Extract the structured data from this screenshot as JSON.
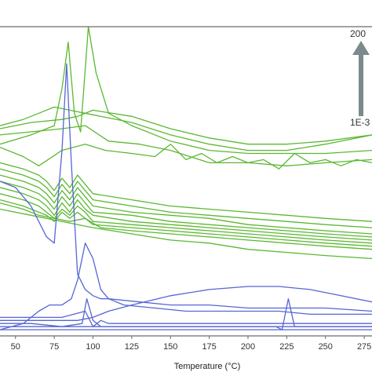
{
  "chart_data": {
    "type": "line",
    "xlabel": "Temperature (°C)",
    "xlim": [
      40,
      280
    ],
    "ylim": [
      0,
      100
    ],
    "grid": false,
    "x_ticks": [
      "50",
      "75",
      "100",
      "125",
      "150",
      "175",
      "200",
      "225",
      "250",
      "275"
    ],
    "annotation": {
      "top": "200",
      "bottom": "1E-3",
      "arrow": "up"
    },
    "colors": {
      "green": "#5bb832",
      "blue": "#5566d4",
      "frame": "#6a6a6a",
      "arrow": "#7b8a8b"
    },
    "series": [
      {
        "group": "green",
        "x": [
          40,
          55,
          65,
          75,
          85,
          95,
          105,
          125,
          150,
          175,
          200,
          225,
          250,
          280
        ],
        "y": [
          68,
          70,
          72,
          74,
          73,
          72,
          71,
          69,
          65,
          62,
          60,
          60,
          62,
          65
        ]
      },
      {
        "group": "green",
        "x": [
          40,
          60,
          80,
          90,
          100,
          125,
          150,
          175,
          200,
          225,
          250,
          280
        ],
        "y": [
          67,
          69,
          70,
          71,
          73,
          71,
          67,
          64,
          62,
          62,
          63,
          65
        ]
      },
      {
        "group": "green",
        "x": [
          40,
          60,
          75,
          80,
          84,
          88,
          92,
          97,
          102,
          110,
          125,
          150,
          175,
          200,
          225,
          250,
          280
        ],
        "y": [
          62,
          65,
          68,
          80,
          95,
          72,
          66,
          100,
          85,
          72,
          68,
          63,
          60,
          59,
          59,
          59,
          60
        ]
      },
      {
        "group": "green",
        "x": [
          40,
          60,
          80,
          95,
          110,
          130,
          150,
          175,
          200,
          225,
          250,
          280
        ],
        "y": [
          65,
          66,
          67,
          68,
          63,
          62,
          60,
          56,
          56,
          55,
          56,
          57
        ]
      },
      {
        "group": "green",
        "x": [
          40,
          55,
          65,
          80,
          95,
          108,
          125,
          140,
          150,
          160,
          170,
          180,
          190,
          200,
          210,
          220,
          230,
          240,
          250,
          260,
          270,
          280
        ],
        "y": [
          61,
          58,
          55,
          60,
          62,
          60,
          59,
          58,
          62,
          57,
          59,
          56,
          58,
          56,
          57,
          54,
          59,
          56,
          57,
          55,
          57,
          56
        ]
      },
      {
        "group": "green",
        "x": [
          40,
          55,
          65,
          70,
          75,
          80,
          85,
          90,
          95,
          100,
          125,
          150,
          175,
          200,
          225,
          250,
          280
        ],
        "y": [
          56,
          54,
          52,
          50,
          47,
          51,
          48,
          52,
          49,
          46,
          44,
          42,
          41,
          40,
          39,
          38,
          37
        ]
      },
      {
        "group": "green",
        "x": [
          40,
          55,
          65,
          70,
          75,
          80,
          85,
          90,
          95,
          100,
          125,
          150,
          175,
          200,
          225,
          250,
          280
        ],
        "y": [
          54,
          52,
          50,
          48,
          45,
          49,
          46,
          50,
          47,
          44,
          42,
          40,
          39,
          38,
          37,
          36,
          35
        ]
      },
      {
        "group": "green",
        "x": [
          40,
          55,
          65,
          70,
          75,
          80,
          85,
          90,
          95,
          100,
          125,
          150,
          175,
          200,
          225,
          250,
          280
        ],
        "y": [
          52,
          50,
          48,
          46,
          43,
          47,
          44,
          48,
          45,
          42,
          40,
          39,
          38,
          36,
          35,
          34,
          33
        ]
      },
      {
        "group": "green",
        "x": [
          40,
          55,
          65,
          70,
          75,
          80,
          85,
          90,
          95,
          100,
          125,
          150,
          175,
          200,
          225,
          250,
          280
        ],
        "y": [
          50,
          48,
          46,
          44,
          41,
          45,
          42,
          46,
          43,
          40,
          39,
          37,
          36,
          35,
          34,
          33,
          32
        ]
      },
      {
        "group": "green",
        "x": [
          40,
          55,
          65,
          70,
          75,
          80,
          85,
          90,
          95,
          100,
          125,
          150,
          175,
          200,
          225,
          250,
          280
        ],
        "y": [
          48,
          46,
          44,
          42,
          39,
          43,
          40,
          44,
          41,
          39,
          37,
          36,
          35,
          34,
          33,
          32,
          31
        ]
      },
      {
        "group": "green",
        "x": [
          40,
          55,
          65,
          70,
          75,
          80,
          85,
          90,
          95,
          100,
          125,
          150,
          175,
          200,
          225,
          250,
          280
        ],
        "y": [
          46,
          44,
          42,
          40,
          38,
          41,
          39,
          42,
          40,
          37,
          36,
          35,
          34,
          33,
          32,
          31,
          30
        ]
      },
      {
        "group": "green",
        "x": [
          40,
          55,
          65,
          70,
          75,
          80,
          85,
          90,
          95,
          100,
          125,
          150,
          175,
          200,
          225,
          250,
          280
        ],
        "y": [
          44,
          42,
          40,
          39,
          37,
          40,
          38,
          40,
          38,
          36,
          35,
          34,
          33,
          32,
          31,
          30,
          29
        ]
      },
      {
        "group": "green",
        "x": [
          40,
          55,
          65,
          75,
          85,
          95,
          105,
          125,
          150,
          175,
          200,
          225,
          250,
          280
        ],
        "y": [
          43,
          41,
          39,
          38,
          37,
          38,
          35,
          34,
          33,
          32,
          31,
          30,
          29,
          28
        ]
      },
      {
        "group": "green",
        "x": [
          40,
          60,
          80,
          100,
          125,
          150,
          175,
          200,
          225,
          250,
          280
        ],
        "y": [
          41,
          39,
          37,
          35,
          33,
          31,
          30,
          28,
          27,
          26,
          25
        ]
      },
      {
        "group": "blue",
        "x": [
          40,
          50,
          60,
          70,
          75,
          80,
          83,
          86,
          90,
          95,
          100,
          105,
          110,
          130,
          150,
          175,
          200,
          225,
          250,
          280
        ],
        "y": [
          50,
          48,
          42,
          32,
          30,
          60,
          88,
          56,
          20,
          15,
          13,
          12,
          12,
          11,
          10,
          10,
          9,
          9,
          9,
          8
        ]
      },
      {
        "group": "blue",
        "x": [
          40,
          55,
          65,
          72,
          80,
          86,
          90,
          95,
          100,
          105,
          110,
          120,
          140,
          160,
          180,
          200,
          220,
          240,
          260,
          280
        ],
        "y": [
          2,
          4,
          8,
          10,
          10,
          12,
          18,
          30,
          25,
          15,
          12,
          10,
          9,
          8,
          8,
          8,
          8,
          7,
          7,
          7
        ]
      },
      {
        "group": "blue",
        "x": [
          40,
          70,
          90,
          100,
          110,
          125,
          150,
          175,
          200,
          220,
          240,
          260,
          280
        ],
        "y": [
          5,
          5,
          5,
          6,
          8,
          10,
          13,
          15,
          16,
          16,
          15,
          13,
          11
        ]
      },
      {
        "group": "blue",
        "x": [
          40,
          60,
          80,
          95,
          100,
          105,
          110,
          125,
          150,
          175,
          200,
          225,
          250,
          280
        ],
        "y": [
          6,
          6,
          6,
          8,
          3,
          5,
          4,
          4,
          4,
          4,
          4,
          4,
          4,
          4
        ]
      },
      {
        "group": "blue",
        "x": [
          40,
          60,
          80,
          93,
          96,
          100,
          105,
          125,
          150,
          175,
          200,
          218,
          222,
          226,
          230,
          240,
          250,
          280
        ],
        "y": [
          3,
          3,
          3,
          4,
          12,
          5,
          3,
          3,
          3,
          3,
          3,
          3,
          2,
          12,
          3,
          3,
          3,
          3
        ]
      },
      {
        "group": "blue",
        "x": [
          40,
          60,
          80,
          100,
          125,
          150,
          175,
          200,
          225,
          250,
          280
        ],
        "y": [
          4,
          4,
          3,
          3,
          3,
          3,
          3,
          3,
          3,
          3,
          3
        ]
      },
      {
        "group": "blue",
        "x": [
          40,
          60,
          80,
          100,
          125,
          150,
          175,
          200,
          225,
          250,
          280
        ],
        "y": [
          2,
          2,
          2,
          2,
          2,
          2,
          2,
          2,
          2,
          2,
          2
        ]
      }
    ]
  }
}
